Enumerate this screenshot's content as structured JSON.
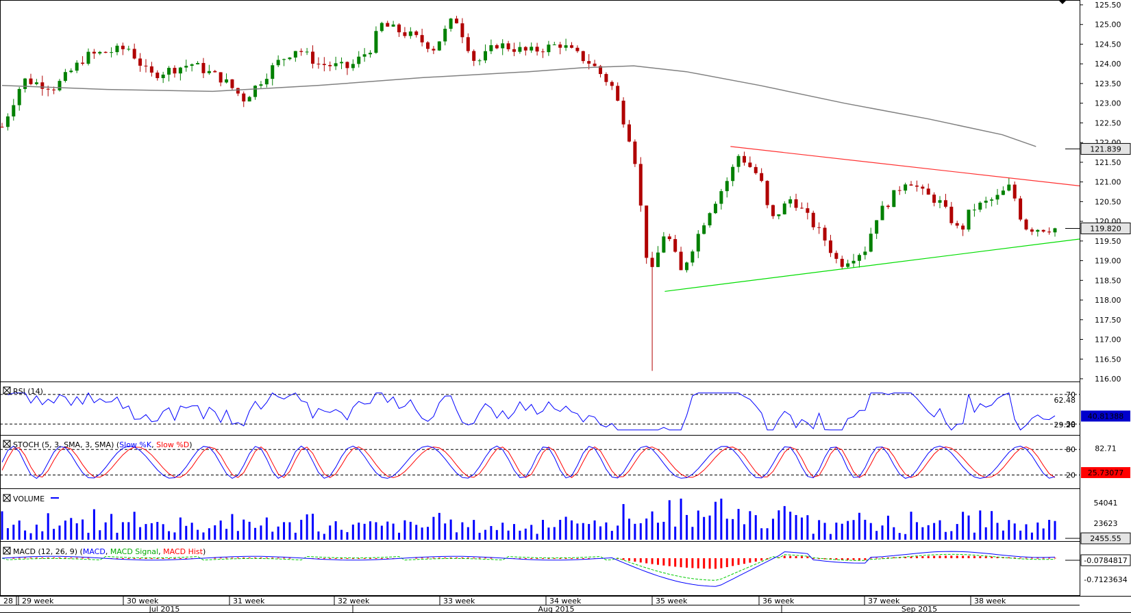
{
  "chart_data": {
    "type": "candlestick",
    "main": {
      "yticks": [
        "125.50",
        "125.00",
        "124.50",
        "124.00",
        "123.50",
        "123.00",
        "122.50",
        "122.00",
        "121.50",
        "121.00",
        "120.50",
        "120.00",
        "119.50",
        "119.00",
        "118.50",
        "118.00",
        "117.50",
        "117.00",
        "116.50",
        "116.00"
      ],
      "ylim": [
        116.0,
        125.5
      ],
      "ma_label": "121.839",
      "last_label": "119.820",
      "ma_color": "#808080",
      "resistance_color": "#ff3030",
      "support_color": "#00dd00",
      "up_color": "#008000",
      "down_color": "#b00000",
      "resistance_line": {
        "start": [
          0.676,
          121.9
        ],
        "end": [
          1.0,
          120.9
        ]
      },
      "support_line": {
        "start": [
          0.615,
          118.22
        ],
        "end": [
          1.0,
          119.55
        ]
      },
      "ma_points": [
        [
          0,
          123.45
        ],
        [
          0.1,
          123.35
        ],
        [
          0.2,
          123.3
        ],
        [
          0.3,
          123.45
        ],
        [
          0.4,
          123.65
        ],
        [
          0.5,
          123.8
        ],
        [
          0.55,
          123.9
        ],
        [
          0.6,
          123.95
        ],
        [
          0.65,
          123.8
        ],
        [
          0.72,
          123.45
        ],
        [
          0.8,
          123.0
        ],
        [
          0.88,
          122.6
        ],
        [
          0.95,
          122.2
        ],
        [
          0.982,
          121.9
        ]
      ]
    },
    "rsi": {
      "title": "RSI (14)",
      "ticks": [
        "70",
        "62.48",
        "30",
        "29.28"
      ],
      "value_label": "40.81388",
      "levels": [
        70,
        30
      ],
      "line_color": "#0000ff"
    },
    "stoch": {
      "title": "STOCH (5, 3, SMA, 3, SMA)",
      "k_label": "Slow %K",
      "d_label": "Slow %D",
      "ticks": [
        "80",
        "82.71",
        "20"
      ],
      "value_label": "25.73077",
      "levels": [
        80,
        20
      ],
      "k_color": "#0000ff",
      "d_color": "#ff0000"
    },
    "volume": {
      "title": "VOLUME",
      "ticks": [
        "54041",
        "23623"
      ],
      "value_label": "2455.55",
      "bar_color": "#0000ff"
    },
    "macd": {
      "title": "MACD (12, 26, 9)",
      "legend": [
        "MACD",
        "MACD Signal",
        "MACD Hist"
      ],
      "legend_colors": [
        "#0000ff",
        "#00cc00",
        "#ff0000"
      ],
      "ticks": [
        "-0.7123634"
      ],
      "value_label": "-0.0784817"
    },
    "xaxis": {
      "weeks": [
        "28",
        "29 week",
        "30 week",
        "31 week",
        "32 week",
        "33 week",
        "34 week",
        "35 week",
        "36 week",
        "37 week",
        "38 week"
      ],
      "months": [
        "Jul 2015",
        "Aug 2015",
        "Sep 2015"
      ]
    }
  }
}
